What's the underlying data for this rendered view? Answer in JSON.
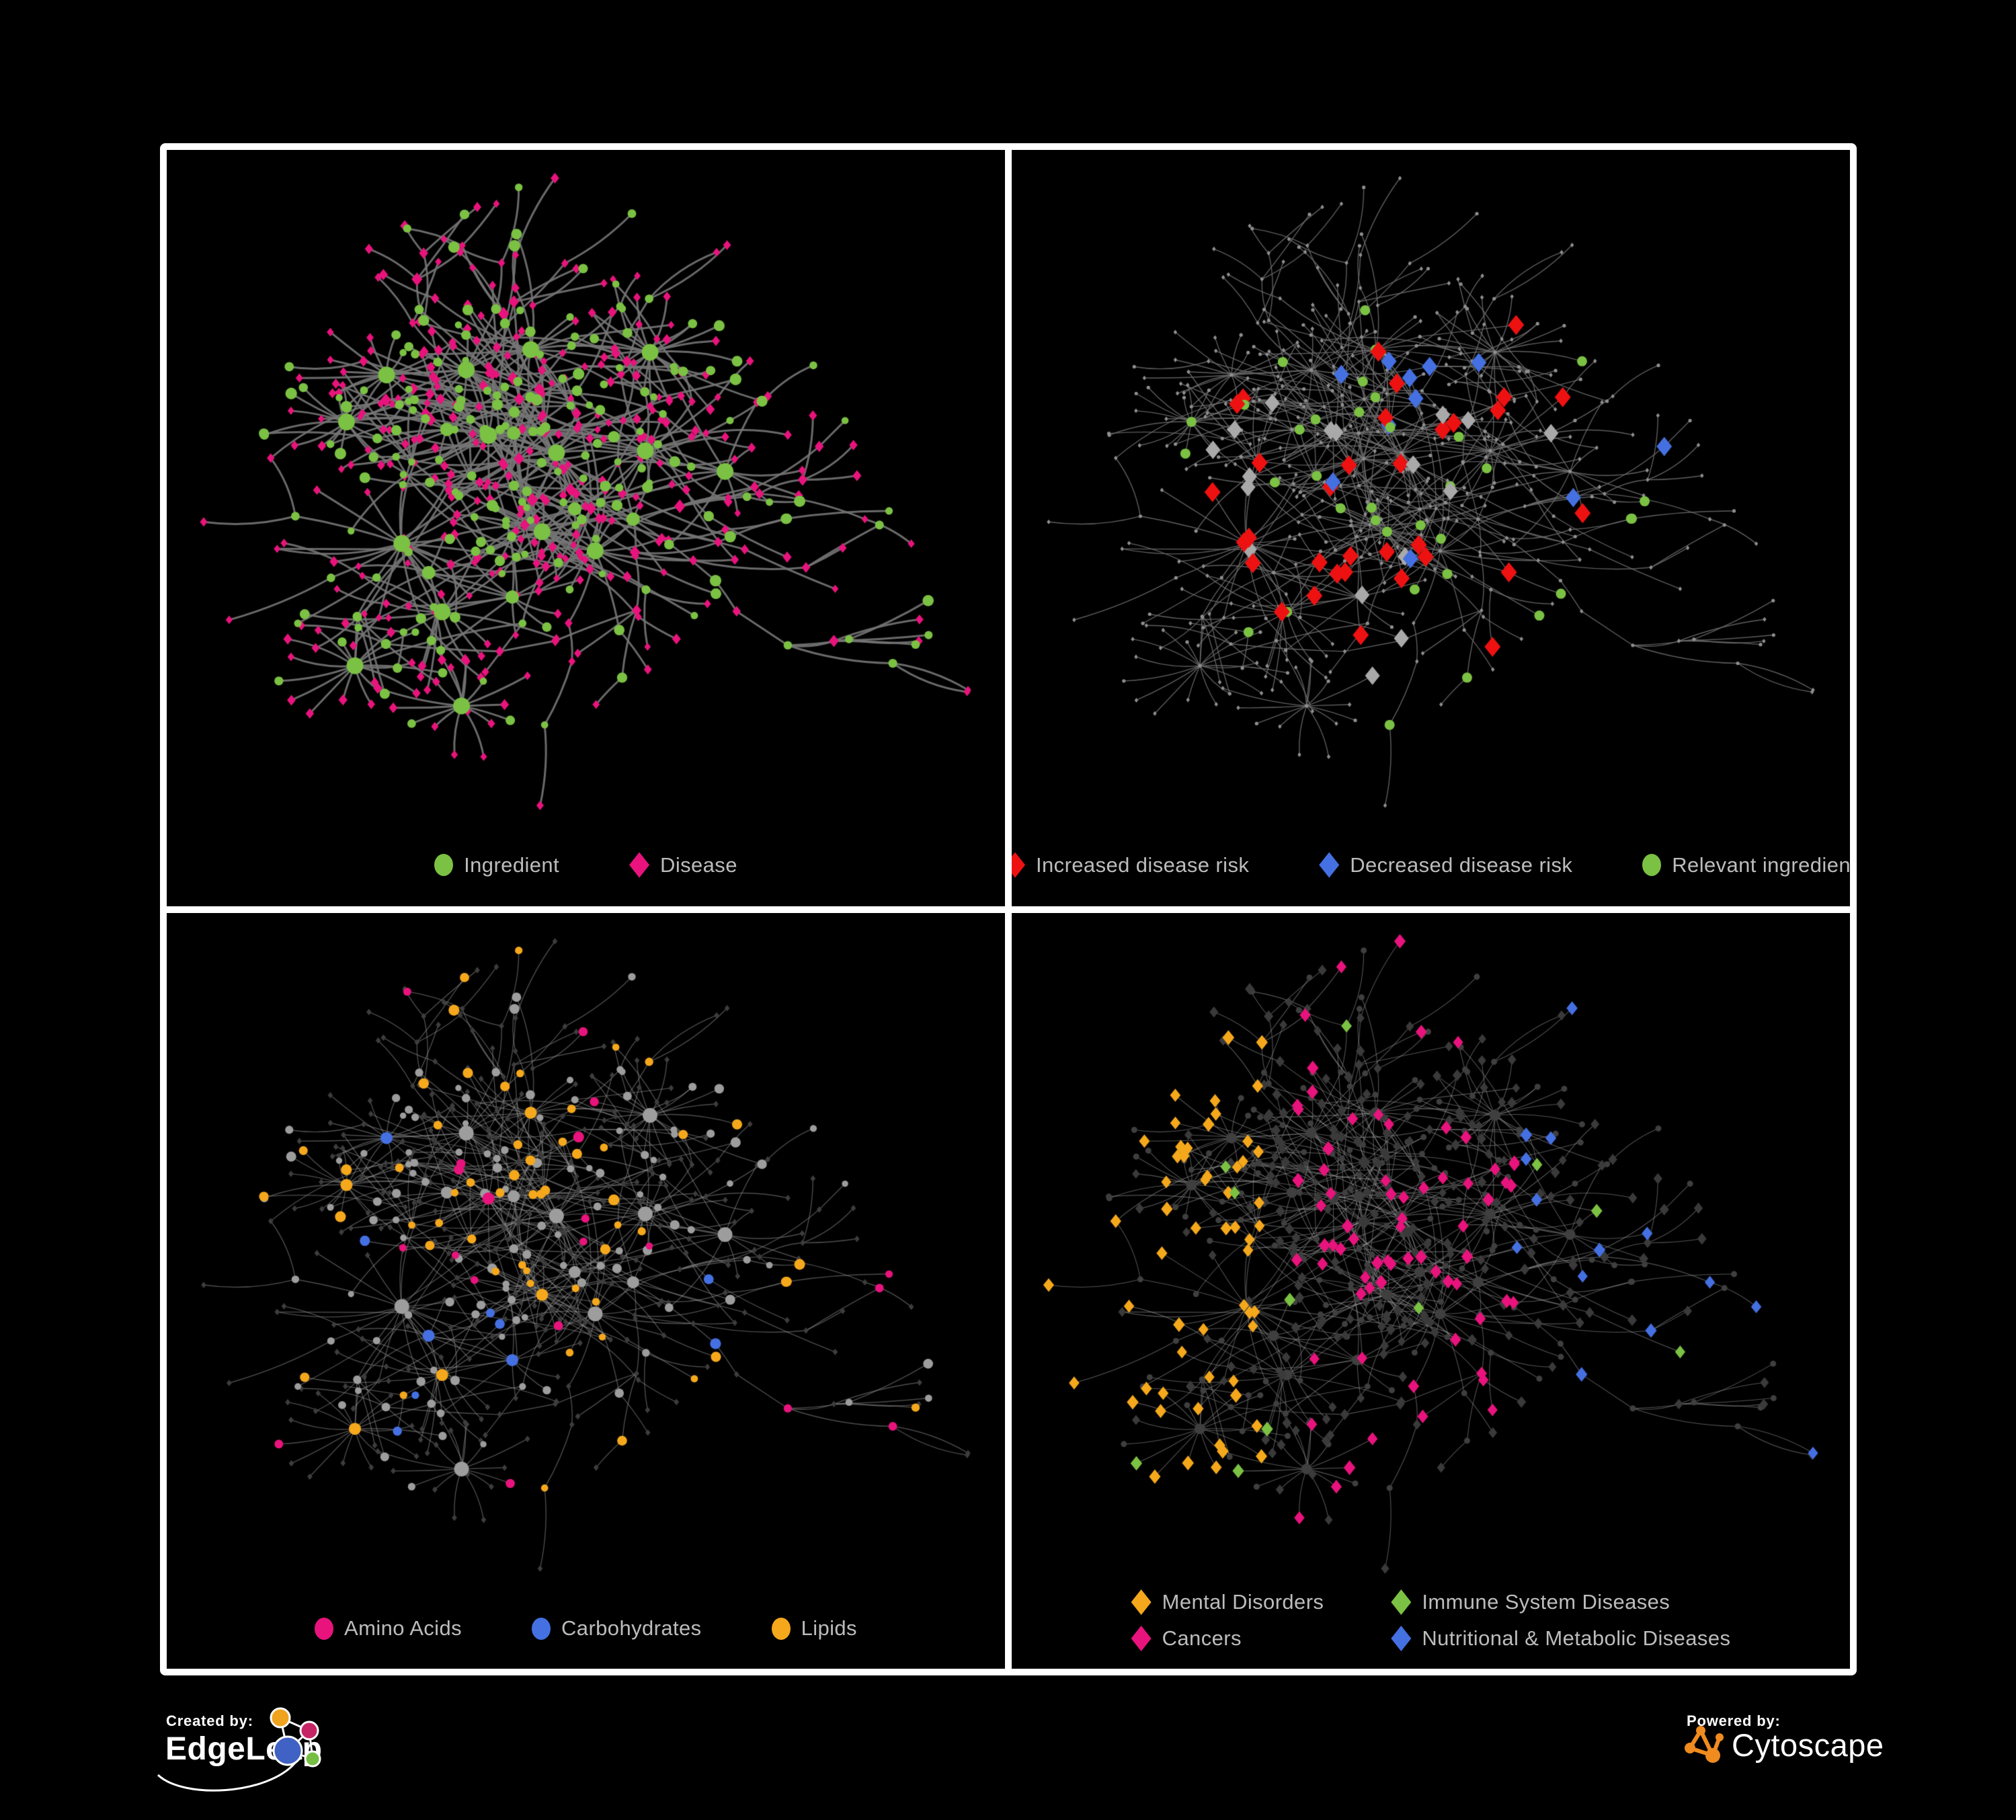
{
  "branding": {
    "created_by": "Created by:",
    "brand_name": "EdgeLeap",
    "powered_by": "Powered by:",
    "engine_name": "Cytoscape",
    "edgeleap_logo_colors": {
      "orange": "#efa31f",
      "pink": "#c62565",
      "blue": "#3f62c4",
      "green": "#77bf43",
      "line": "#ffffff"
    },
    "cytoscape_orange": "#ef8b1f"
  },
  "colors": {
    "background": "#000000",
    "panel_border": "#ffffff",
    "legend_text": "#bcbcbc",
    "green": "#7bc143",
    "pink": "#e8137c",
    "red": "#ee1111",
    "blue": "#4470e2",
    "amber": "#f5a81c",
    "silver": "#a9a9a9",
    "gray_node": "#9d9d9d",
    "dark_node": "#3d3d3d",
    "tiny_node": "#8f8f8f",
    "dim_circle": "#3f3f3f",
    "dim_diamond": "#3a3a3a"
  },
  "network": {
    "seed": 7,
    "node_count": 500,
    "extra_bursts": 6,
    "extra_edges": 52
  },
  "panels": [
    {
      "key": "ingredient-disease",
      "legend": [
        {
          "label": "Ingredient",
          "shape": "circle",
          "color": "#7bc143"
        },
        {
          "label": "Disease",
          "shape": "diamond",
          "color": "#e8137c"
        }
      ],
      "style": {
        "edgeColor": "#757575",
        "edgeWidth": 3.0,
        "edgeAlpha": 0.9
      }
    },
    {
      "key": "disease-risk",
      "legend": [
        {
          "label": "Increased disease risk",
          "shape": "diamond",
          "color": "#ee1111"
        },
        {
          "label": "Decreased disease risk",
          "shape": "diamond",
          "color": "#4470e2"
        },
        {
          "label": "Relevant ingredient",
          "shape": "circle",
          "color": "#7bc143"
        }
      ],
      "style": {
        "edgeColor": "#6e6e6e",
        "edgeWidth": 1.4,
        "edgeAlpha": 0.85
      }
    },
    {
      "key": "nutrient-classes",
      "legend": [
        {
          "label": "Amino Acids",
          "shape": "circle",
          "color": "#e8137c"
        },
        {
          "label": "Carbohydrates",
          "shape": "circle",
          "color": "#4470e2"
        },
        {
          "label": "Lipids",
          "shape": "circle",
          "color": "#f5a81c"
        }
      ],
      "style": {
        "edgeColor": "#989898",
        "edgeWidth": 1.4,
        "edgeAlpha": 0.5
      }
    },
    {
      "key": "disease-categories",
      "legend": [
        {
          "label": "Mental Disorders",
          "shape": "diamond",
          "color": "#f5a81c"
        },
        {
          "label": "Immune System Diseases",
          "shape": "diamond",
          "color": "#7bc143"
        },
        {
          "label": "Cancers",
          "shape": "diamond",
          "color": "#e8137c"
        },
        {
          "label": "Nutritional & Metabolic Diseases",
          "shape": "diamond",
          "color": "#4470e2"
        }
      ],
      "style": {
        "edgeColor": "#a5a5a5",
        "edgeWidth": 1.1,
        "edgeAlpha": 0.5
      }
    }
  ]
}
